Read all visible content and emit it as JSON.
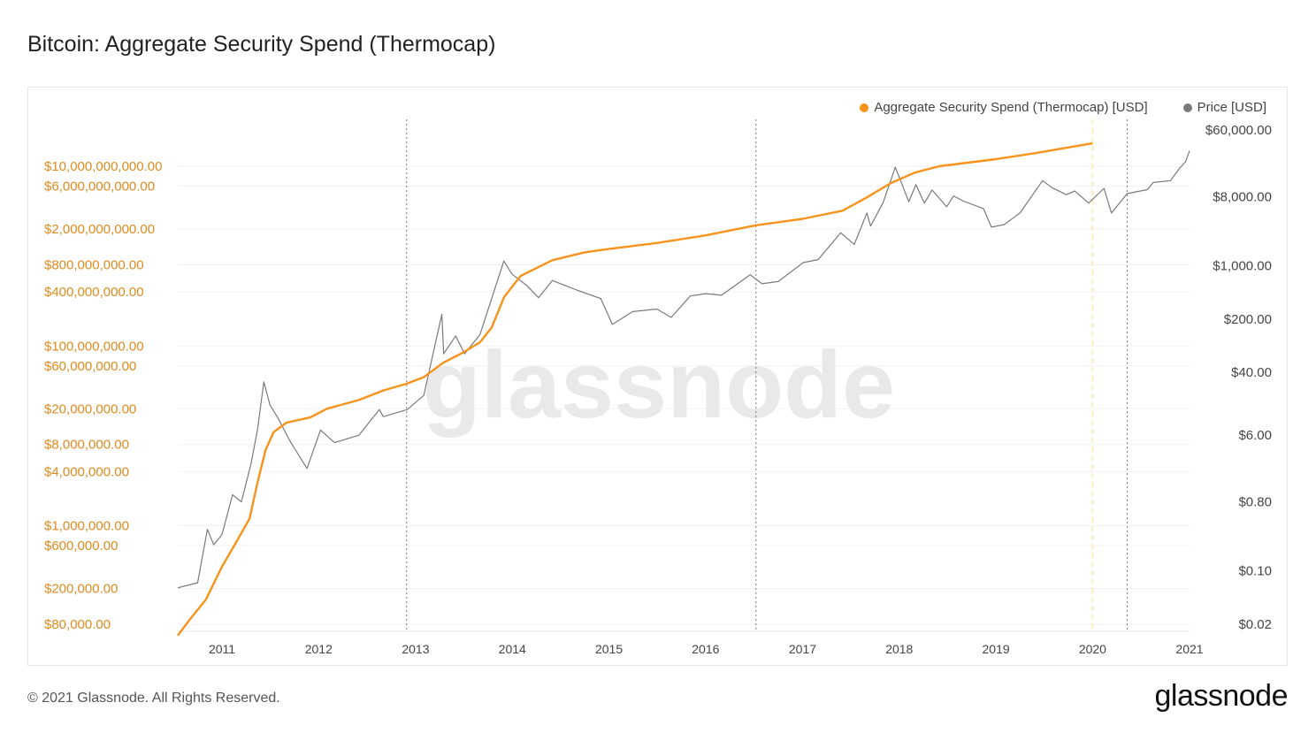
{
  "title": "Bitcoin: Aggregate Security Spend (Thermocap)",
  "footer": "© 2021 Glassnode. All Rights Reserved.",
  "brand": "glassnode",
  "watermark": "glassnode",
  "colors": {
    "thermocap": "#f7931a",
    "price": "#7a7a7a",
    "left_axis_text": "#e08a1e"
  },
  "chart_data": {
    "type": "line",
    "title": "Bitcoin: Aggregate Security Spend (Thermocap)",
    "legend_position": "top-right",
    "grid": "horizontal light gridlines",
    "x_ticks": [
      "2011",
      "2012",
      "2013",
      "2014",
      "2015",
      "2016",
      "2017",
      "2018",
      "2019",
      "2020",
      "2021"
    ],
    "xlim": [
      "2010-07-18",
      "2021-01-01"
    ],
    "y_left": {
      "scale": "log",
      "ticks": [
        "$10,000,000,000.00",
        "$6,000,000,000.00",
        "$2,000,000,000.00",
        "$800,000,000.00",
        "$400,000,000.00",
        "$100,000,000.00",
        "$60,000,000.00",
        "$20,000,000.00",
        "$8,000,000.00",
        "$4,000,000.00",
        "$1,000,000.00",
        "$600,000.00",
        "$200,000.00",
        "$80,000.00"
      ],
      "tick_values": [
        10000000000,
        6000000000,
        2000000000,
        800000000,
        400000000,
        100000000,
        60000000,
        20000000,
        8000000,
        4000000,
        1000000,
        600000,
        200000,
        80000
      ]
    },
    "y_right": {
      "scale": "log",
      "ticks": [
        "$60,000.00",
        "$8,000.00",
        "$1,000.00",
        "$200.00",
        "$40.00",
        "$6.00",
        "$0.80",
        "$0.10",
        "$0.02"
      ],
      "tick_values": [
        60000,
        8000,
        1000,
        200,
        40,
        6,
        0.8,
        0.1,
        0.02
      ]
    },
    "halvings": [
      "2012-11-28",
      "2016-07-09",
      "2020-05-11"
    ],
    "highlight_date": "2020-01-01",
    "series": [
      {
        "name": "Aggregate Security Spend (Thermocap) [USD]",
        "axis": "left",
        "points": [
          [
            "2010-07-18",
            60000
          ],
          [
            "2010-09-01",
            90000
          ],
          [
            "2010-11-01",
            150000
          ],
          [
            "2011-01-01",
            350000
          ],
          [
            "2011-03-01",
            700000
          ],
          [
            "2011-04-15",
            1200000
          ],
          [
            "2011-05-15",
            3000000
          ],
          [
            "2011-06-15",
            7000000
          ],
          [
            "2011-07-15",
            11000000
          ],
          [
            "2011-09-01",
            14000000
          ],
          [
            "2011-12-01",
            16000000
          ],
          [
            "2012-02-01",
            20000000
          ],
          [
            "2012-06-01",
            25000000
          ],
          [
            "2012-09-01",
            32000000
          ],
          [
            "2012-11-28",
            38000000
          ],
          [
            "2013-02-01",
            45000000
          ],
          [
            "2013-04-15",
            65000000
          ],
          [
            "2013-07-01",
            85000000
          ],
          [
            "2013-09-01",
            110000000
          ],
          [
            "2013-10-15",
            160000000
          ],
          [
            "2013-12-01",
            350000000
          ],
          [
            "2014-02-01",
            600000000
          ],
          [
            "2014-06-01",
            900000000
          ],
          [
            "2014-10-01",
            1100000000
          ],
          [
            "2015-01-01",
            1200000000
          ],
          [
            "2015-07-01",
            1400000000
          ],
          [
            "2016-01-01",
            1700000000
          ],
          [
            "2016-07-09",
            2200000000
          ],
          [
            "2017-01-01",
            2600000000
          ],
          [
            "2017-06-01",
            3200000000
          ],
          [
            "2017-09-01",
            4500000000
          ],
          [
            "2017-12-01",
            6500000000
          ],
          [
            "2018-03-01",
            8500000000
          ],
          [
            "2018-06-01",
            10000000000
          ],
          [
            "2019-01-01",
            12000000000
          ],
          [
            "2019-06-01",
            14000000000
          ],
          [
            "2020-01-01",
            18000000000
          ]
        ]
      },
      {
        "name": "Price [USD]",
        "axis": "right",
        "points": [
          [
            "2010-07-18",
            0.06
          ],
          [
            "2010-10-01",
            0.07
          ],
          [
            "2010-11-07",
            0.35
          ],
          [
            "2010-12-01",
            0.22
          ],
          [
            "2011-01-01",
            0.3
          ],
          [
            "2011-02-10",
            1.0
          ],
          [
            "2011-03-15",
            0.8
          ],
          [
            "2011-04-20",
            2.5
          ],
          [
            "2011-05-15",
            7.0
          ],
          [
            "2011-06-08",
            30.0
          ],
          [
            "2011-07-01",
            15.0
          ],
          [
            "2011-08-01",
            10.0
          ],
          [
            "2011-09-15",
            5.0
          ],
          [
            "2011-11-18",
            2.2
          ],
          [
            "2012-01-08",
            7.0
          ],
          [
            "2012-03-01",
            4.8
          ],
          [
            "2012-06-01",
            6.0
          ],
          [
            "2012-08-17",
            13.0
          ],
          [
            "2012-09-01",
            10.5
          ],
          [
            "2012-12-01",
            13.0
          ],
          [
            "2013-02-01",
            20.0
          ],
          [
            "2013-04-10",
            230.0
          ],
          [
            "2013-04-17",
            70.0
          ],
          [
            "2013-06-01",
            120.0
          ],
          [
            "2013-07-05",
            70.0
          ],
          [
            "2013-09-01",
            125.0
          ],
          [
            "2013-11-30",
            1150.0
          ],
          [
            "2014-01-01",
            770.0
          ],
          [
            "2014-02-25",
            550.0
          ],
          [
            "2014-04-10",
            380.0
          ],
          [
            "2014-06-01",
            640.0
          ],
          [
            "2014-09-01",
            480.0
          ],
          [
            "2014-12-01",
            370.0
          ],
          [
            "2015-01-14",
            170.0
          ],
          [
            "2015-04-01",
            250.0
          ],
          [
            "2015-07-01",
            270.0
          ],
          [
            "2015-08-24",
            210.0
          ],
          [
            "2015-11-04",
            400.0
          ],
          [
            "2016-01-01",
            430.0
          ],
          [
            "2016-03-01",
            410.0
          ],
          [
            "2016-06-17",
            760.0
          ],
          [
            "2016-08-01",
            580.0
          ],
          [
            "2016-10-01",
            620.0
          ],
          [
            "2017-01-04",
            1100.0
          ],
          [
            "2017-03-01",
            1200.0
          ],
          [
            "2017-05-25",
            2700.0
          ],
          [
            "2017-07-15",
            1900.0
          ],
          [
            "2017-09-01",
            4900.0
          ],
          [
            "2017-09-15",
            3300.0
          ],
          [
            "2017-11-01",
            6700.0
          ],
          [
            "2017-12-17",
            19500.0
          ],
          [
            "2018-02-06",
            6900.0
          ],
          [
            "2018-03-05",
            11500.0
          ],
          [
            "2018-04-06",
            6600.0
          ],
          [
            "2018-05-05",
            9800.0
          ],
          [
            "2018-06-29",
            5900.0
          ],
          [
            "2018-07-25",
            8200.0
          ],
          [
            "2018-09-01",
            7000.0
          ],
          [
            "2018-11-15",
            5600.0
          ],
          [
            "2018-12-15",
            3200.0
          ],
          [
            "2019-02-01",
            3450.0
          ],
          [
            "2019-04-02",
            4900.0
          ],
          [
            "2019-06-26",
            13000.0
          ],
          [
            "2019-08-01",
            10500.0
          ],
          [
            "2019-09-24",
            8500.0
          ],
          [
            "2019-10-26",
            9500.0
          ],
          [
            "2019-12-17",
            6600.0
          ],
          [
            "2020-02-13",
            10300.0
          ],
          [
            "2020-03-12",
            4900.0
          ],
          [
            "2020-05-11",
            8800.0
          ],
          [
            "2020-07-26",
            9900.0
          ],
          [
            "2020-08-17",
            12300.0
          ],
          [
            "2020-10-21",
            13000.0
          ],
          [
            "2020-11-25",
            19000.0
          ],
          [
            "2020-12-17",
            23000.0
          ],
          [
            "2021-01-01",
            32000.0
          ]
        ]
      }
    ]
  }
}
